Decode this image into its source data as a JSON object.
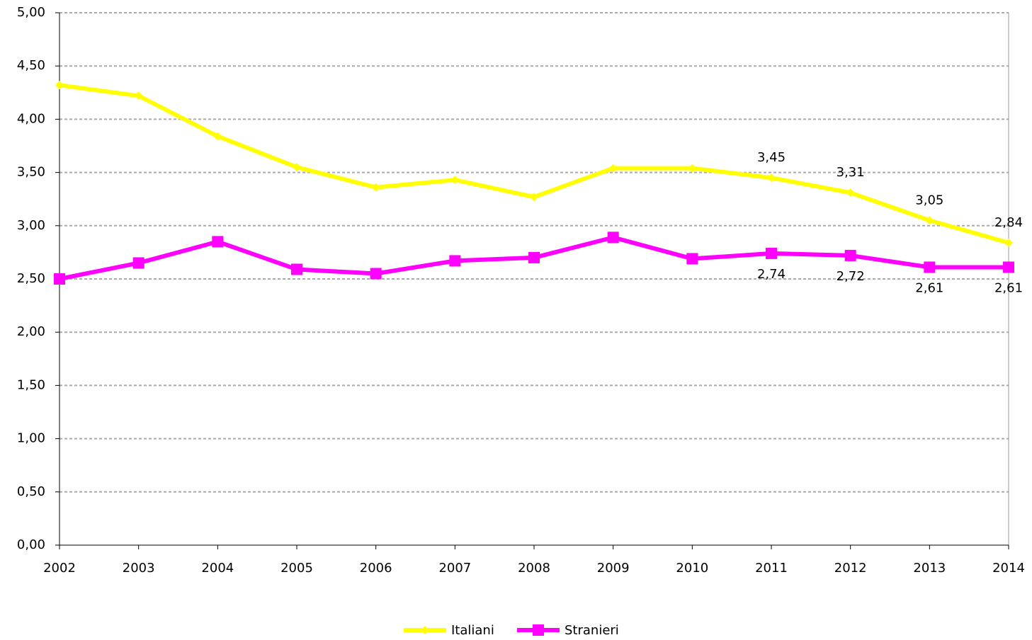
{
  "chart_data": {
    "type": "line",
    "categories": [
      "2002",
      "2003",
      "2004",
      "2005",
      "2006",
      "2007",
      "2008",
      "2009",
      "2010",
      "2011",
      "2012",
      "2013",
      "2014"
    ],
    "series": [
      {
        "name": "Italiani",
        "color": "#ffff00",
        "marker": "diamond",
        "label_position": "above",
        "values": [
          4.32,
          4.22,
          3.84,
          3.55,
          3.36,
          3.43,
          3.27,
          3.54,
          3.54,
          3.45,
          3.31,
          3.05,
          2.84
        ],
        "value_labels": [
          null,
          null,
          null,
          null,
          null,
          null,
          null,
          null,
          null,
          "3,45",
          "3,31",
          "3,05",
          "2,84"
        ]
      },
      {
        "name": "Stranieri",
        "color": "#ff00ff",
        "marker": "square",
        "label_position": "below",
        "values": [
          2.5,
          2.65,
          2.85,
          2.59,
          2.55,
          2.67,
          2.7,
          2.89,
          2.69,
          2.74,
          2.72,
          2.61,
          2.61
        ],
        "value_labels": [
          null,
          null,
          null,
          null,
          null,
          null,
          null,
          null,
          null,
          "2,74",
          "2,72",
          "2,61",
          "2,61"
        ]
      }
    ],
    "ylim": [
      0,
      5
    ],
    "yticks": [
      {
        "value": 0,
        "label": "0,00"
      },
      {
        "value": 0.5,
        "label": "0,50"
      },
      {
        "value": 1,
        "label": "1,00"
      },
      {
        "value": 1.5,
        "label": "1,50"
      },
      {
        "value": 2,
        "label": "2,00"
      },
      {
        "value": 2.5,
        "label": "2,50"
      },
      {
        "value": 3,
        "label": "3,00"
      },
      {
        "value": 3.5,
        "label": "3,50"
      },
      {
        "value": 4,
        "label": "4,00"
      },
      {
        "value": 4.5,
        "label": "4,50"
      },
      {
        "value": 5,
        "label": "5,00"
      }
    ],
    "grid": true,
    "legend": "bottom"
  }
}
